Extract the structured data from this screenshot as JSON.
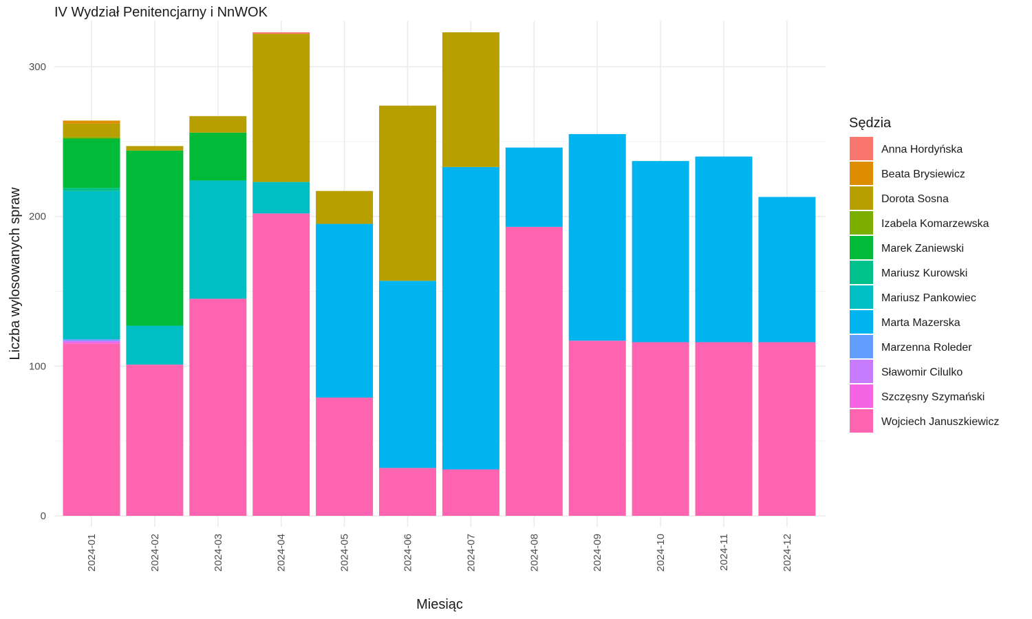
{
  "chart_data": {
    "type": "bar",
    "stacked": true,
    "title": "IV Wydział Penitencjarny i NnWOK",
    "xlabel": "Miesiąc",
    "ylabel": "Liczba wylosowanych spraw",
    "ylim": [
      0,
      330
    ],
    "yticks": [
      0,
      100,
      200,
      300
    ],
    "grid": true,
    "legend_position": "right",
    "legend_title": "Sędzia",
    "categories": [
      "2024-01",
      "2024-02",
      "2024-03",
      "2024-04",
      "2024-05",
      "2024-06",
      "2024-07",
      "2024-08",
      "2024-09",
      "2024-10",
      "2024-11",
      "2024-12"
    ],
    "series": [
      {
        "name": "Anna Hordyńska",
        "color": "#F8766D",
        "values": [
          0,
          0,
          0,
          1,
          0,
          0,
          0,
          0,
          0,
          0,
          0,
          0
        ]
      },
      {
        "name": "Beata Brysiewicz",
        "color": "#DE8C00",
        "values": [
          2,
          0,
          0,
          0,
          0,
          0,
          0,
          0,
          0,
          0,
          0,
          0
        ]
      },
      {
        "name": "Dorota Sosna",
        "color": "#B79F00",
        "values": [
          9,
          3,
          11,
          99,
          22,
          117,
          90,
          0,
          0,
          0,
          0,
          0
        ]
      },
      {
        "name": "Izabela Komarzewska",
        "color": "#7CAE00",
        "values": [
          1,
          0,
          0,
          0,
          0,
          0,
          0,
          0,
          0,
          0,
          0,
          0
        ]
      },
      {
        "name": "Marek Zaniewski",
        "color": "#00BA38",
        "values": [
          33,
          117,
          32,
          0,
          0,
          0,
          0,
          0,
          0,
          0,
          0,
          0
        ]
      },
      {
        "name": "Mariusz Kurowski",
        "color": "#00C08B",
        "values": [
          2,
          0,
          0,
          0,
          0,
          0,
          0,
          0,
          0,
          0,
          0,
          0
        ]
      },
      {
        "name": "Mariusz Pankowiec",
        "color": "#00BFC4",
        "values": [
          99,
          26,
          79,
          21,
          0,
          0,
          0,
          0,
          0,
          0,
          0,
          0
        ]
      },
      {
        "name": "Marta Mazerska",
        "color": "#00B4F0",
        "values": [
          0,
          0,
          0,
          0,
          116,
          125,
          202,
          53,
          138,
          121,
          124,
          97
        ]
      },
      {
        "name": "Marzenna Roleder",
        "color": "#619CFF",
        "values": [
          1,
          0,
          0,
          0,
          0,
          0,
          0,
          0,
          0,
          0,
          0,
          0
        ]
      },
      {
        "name": "Sławomir Cilulko",
        "color": "#C77CFF",
        "values": [
          1,
          0,
          0,
          0,
          0,
          0,
          0,
          0,
          0,
          0,
          0,
          0
        ]
      },
      {
        "name": "Szczęsny Szymański",
        "color": "#F564E3",
        "values": [
          1,
          0,
          0,
          0,
          0,
          0,
          0,
          0,
          0,
          0,
          0,
          0
        ]
      },
      {
        "name": "Wojciech Januszkiewicz",
        "color": "#FF64B0",
        "values": [
          115,
          101,
          145,
          202,
          79,
          32,
          31,
          193,
          117,
          116,
          116,
          116
        ]
      }
    ]
  }
}
